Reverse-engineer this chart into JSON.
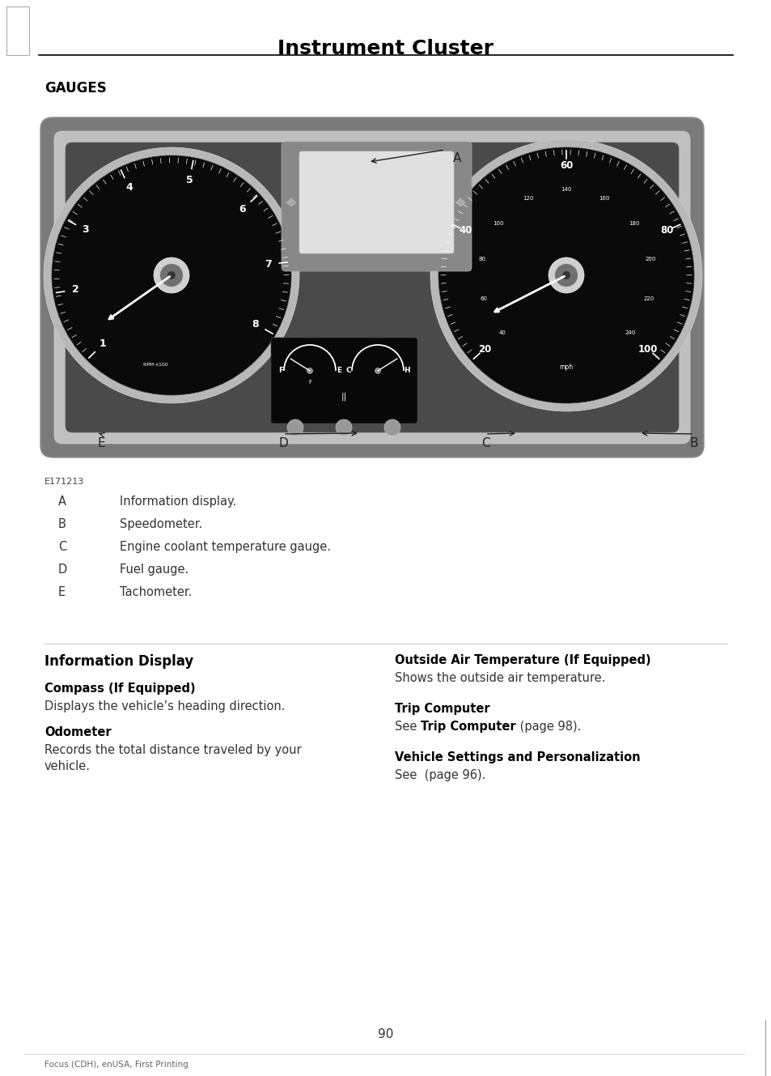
{
  "page_title": "Instrument Cluster",
  "section_title": "GAUGES",
  "bg_color": "#ffffff",
  "title_fontsize": 18,
  "section_fontsize": 12,
  "figure_code": "E171213",
  "labels": {
    "A": "Information display.",
    "B": "Speedometer.",
    "C": "Engine coolant temperature gauge.",
    "D": "Fuel gauge.",
    "E": "Tachometer."
  },
  "label_order": [
    "A",
    "B",
    "C",
    "D",
    "E"
  ],
  "section2_title": "Information Display",
  "subsections_left": [
    {
      "title": "Compass (If Equipped)",
      "body": "Displays the vehicle’s heading direction."
    },
    {
      "title": "Odometer",
      "body": "Records the total distance traveled by your\nvehicle."
    }
  ],
  "subsections_right": [
    {
      "title": "Outside Air Temperature (If Equipped)",
      "body": "Shows the outside air temperature."
    },
    {
      "title": "Trip Computer",
      "body_parts": [
        [
          "See ",
          false
        ],
        [
          "Trip Computer",
          true
        ],
        [
          " (page 98).",
          false
        ]
      ]
    },
    {
      "title": "Vehicle Settings and Personalization",
      "body": "See  (page 96)."
    }
  ],
  "page_number": "90",
  "footer_text": "Focus (CDH), enUSA, First Printing"
}
